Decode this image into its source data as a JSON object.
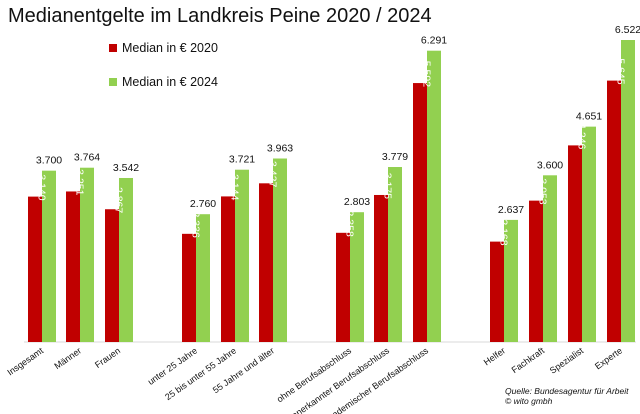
{
  "chart_data": {
    "type": "bar",
    "title": "Medianentgelte  im Landkreis Peine 2020 / 2024",
    "ylim": [
      0,
      7000
    ],
    "grid": false,
    "legend_position": "top-left",
    "colors": {
      "Median in € 2020": "#c00000",
      "Median in € 2024": "#92d050"
    },
    "categories": [
      "Insgesamt",
      "Männer",
      "Frauen",
      "unter 25 Jahre",
      "25 bis unter 55 Jahre",
      "55 Jahre und älter",
      "ohne Berufsabschluss",
      "anerkannter Berufsabschluss",
      "akademischer Berufsabschluss",
      "Helfer",
      "Fachkraft",
      "Spezialist",
      "Experte"
    ],
    "series": [
      {
        "name": "Median in € 2020",
        "values": [
          3140,
          3251,
          2867,
          2336,
          3144,
          3427,
          2358,
          3175,
          5592,
          2168,
          3053,
          4246,
          5645
        ],
        "labels": [
          "3.140",
          "3.251",
          "2.867",
          "2.336",
          "3.144",
          "3.427",
          "2.358",
          "3.175",
          "5.592",
          "2.168",
          "3.053",
          "4.246",
          "5.645"
        ]
      },
      {
        "name": "Median in € 2024",
        "values": [
          3700,
          3764,
          3542,
          2760,
          3721,
          3963,
          2803,
          3779,
          6291,
          2637,
          3600,
          4651,
          6522
        ],
        "labels": [
          "3.700",
          "3.764",
          "3.542",
          "2.760",
          "3.721",
          "3.963",
          "2.803",
          "3.779",
          "6.291",
          "2.637",
          "3.600",
          "4.651",
          "6.522"
        ]
      }
    ]
  },
  "source_lines": [
    "Quelle: Bundesagentur  für Arbeit",
    "© wito gmbh"
  ]
}
